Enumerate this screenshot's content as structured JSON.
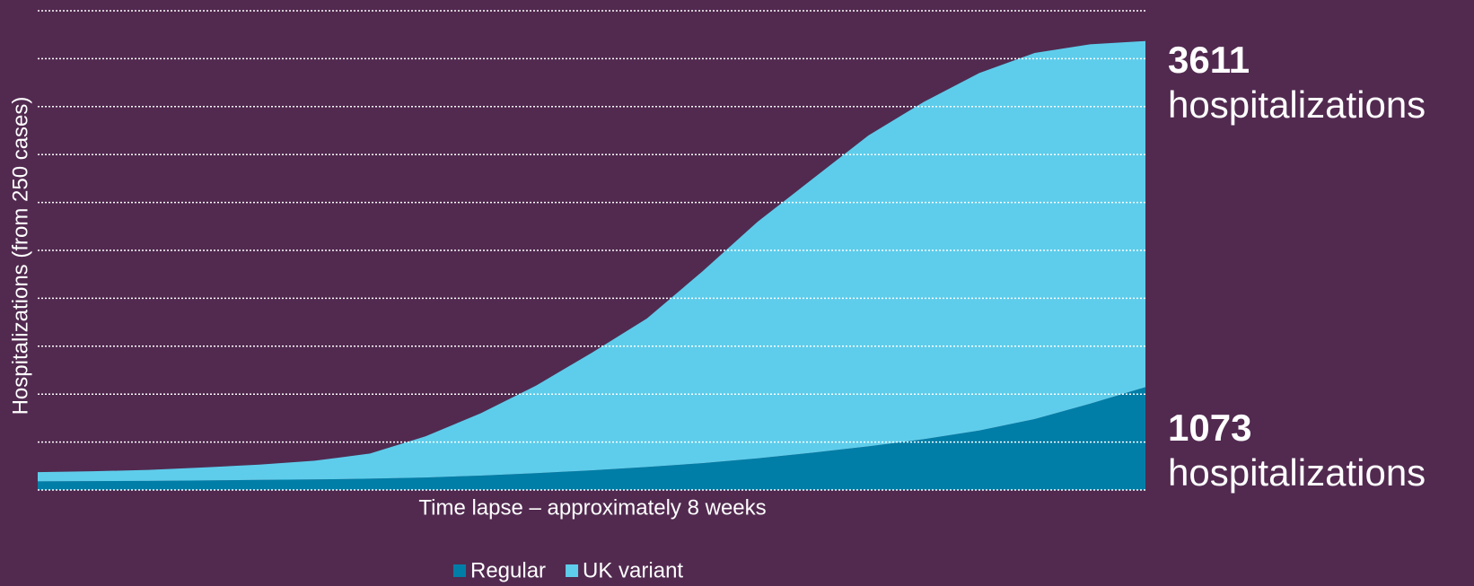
{
  "chart_data": {
    "type": "stacked_area",
    "y_label": "Hospitalizations (from 250 cases)",
    "x_label": "Time lapse – approximately 8 weeks",
    "categories": [
      null,
      null,
      null,
      null,
      null,
      null,
      null,
      null,
      null,
      null,
      null,
      null,
      null,
      null,
      null,
      null,
      null,
      null,
      null,
      null,
      null
    ],
    "series": [
      {
        "name": "Regular",
        "color": "#007ea7",
        "values": [
          90,
          92,
          95,
          100,
          105,
          110,
          118,
          130,
          150,
          175,
          205,
          240,
          280,
          330,
          390,
          455,
          530,
          620,
          740,
          900,
          1073
        ]
      },
      {
        "name": "UK variant",
        "color": "#5ecdeb",
        "values": [
          96,
          103,
          115,
          135,
          160,
          195,
          262,
          430,
          650,
          915,
          1225,
          1550,
          2000,
          2470,
          2860,
          3245,
          3520,
          3730,
          3820,
          3750,
          3611
        ]
      }
    ],
    "end_label_text": "hospitalizations",
    "ylim": [
      0,
      5000
    ],
    "yticks": [
      0,
      500,
      1000,
      1500,
      2000,
      2500,
      3000,
      3500,
      4000,
      4500,
      5000
    ],
    "grid": true
  }
}
